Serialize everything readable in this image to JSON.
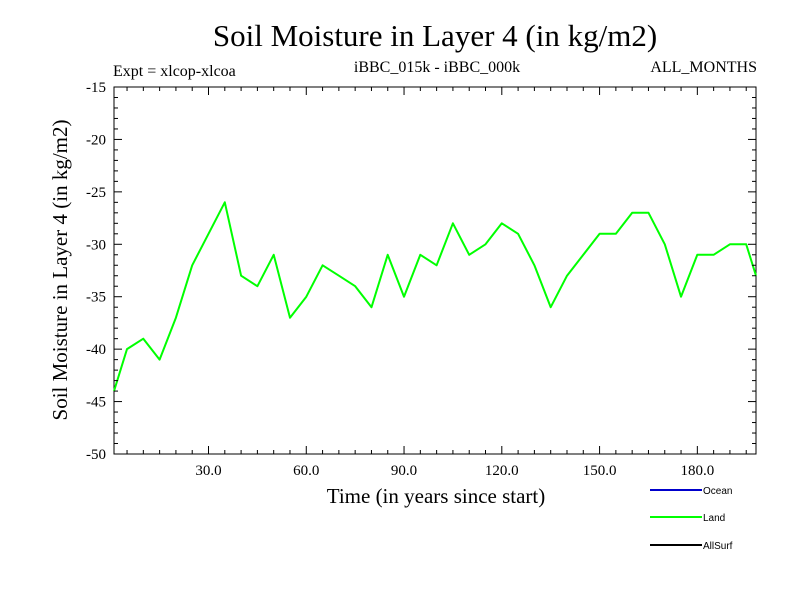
{
  "chart_data": {
    "type": "line",
    "title": "Soil Moisture in Layer 4 (in kg/m2)",
    "subtitle_left": "Expt = xlcop-xlcoa",
    "subtitle_center": "iBBC_015k - iBBC_000k",
    "subtitle_right": "ALL_MONTHS",
    "xlabel": "Time (in years since start)",
    "ylabel": "Soil Moisture in Layer 4 (in kg/m2)",
    "xlim": [
      1,
      198
    ],
    "ylim": [
      -50,
      -15
    ],
    "xticks": [
      30,
      60,
      90,
      120,
      150,
      180
    ],
    "xtick_labels": [
      "30.0",
      "60.0",
      "90.0",
      "120.0",
      "150.0",
      "180.0"
    ],
    "yticks": [
      -50,
      -45,
      -40,
      -35,
      -30,
      -25,
      -20,
      -15
    ],
    "ytick_labels": [
      "-50",
      "-45",
      "-40",
      "-35",
      "-30",
      "-25",
      "-20",
      "-15"
    ],
    "legend": [
      {
        "name": "Ocean",
        "color": "#0000cc"
      },
      {
        "name": "Land",
        "color": "#00ff00"
      },
      {
        "name": "AllSurf",
        "color": "#000000"
      }
    ],
    "series": [
      {
        "name": "Land",
        "color": "#00ff00",
        "x": [
          1,
          5,
          10,
          15,
          20,
          25,
          30,
          35,
          40,
          45,
          50,
          55,
          60,
          65,
          70,
          75,
          80,
          85,
          90,
          95,
          100,
          105,
          110,
          115,
          120,
          125,
          130,
          135,
          140,
          145,
          150,
          155,
          160,
          165,
          170,
          175,
          180,
          185,
          190,
          195,
          198
        ],
        "values": [
          -44,
          -40,
          -39,
          -41,
          -37,
          -32,
          -29,
          -26,
          -33,
          -34,
          -31,
          -37,
          -35,
          -32,
          -33,
          -34,
          -36,
          -31,
          -35,
          -31,
          -32,
          -28,
          -31,
          -30,
          -28,
          -29,
          -32,
          -36,
          -33,
          -31,
          -29,
          -29,
          -27,
          -27,
          -30,
          -35,
          -31,
          -31,
          -30,
          -30,
          -33
        ]
      }
    ]
  }
}
